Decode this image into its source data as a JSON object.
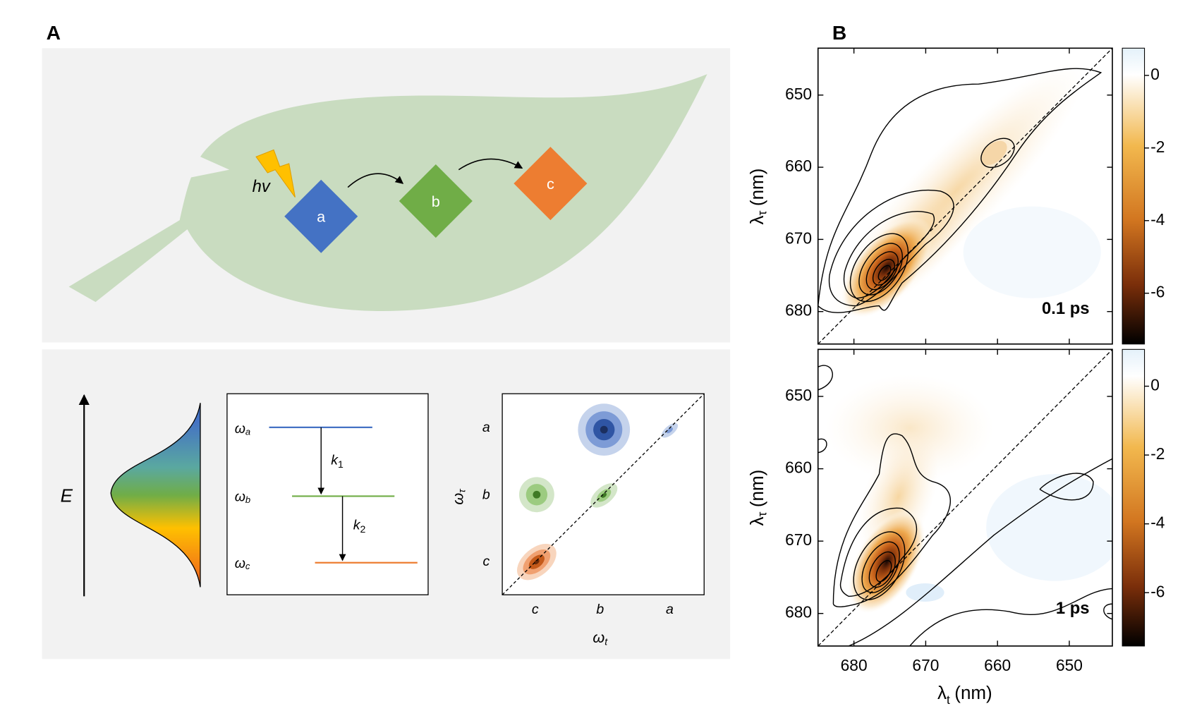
{
  "panel_a": {
    "label": "A",
    "photon": "hv",
    "states": [
      "a",
      "b",
      "c"
    ],
    "energy_axis": "E",
    "levels": [
      {
        "symbol": "ω",
        "sub": "a"
      },
      {
        "symbol": "ω",
        "sub": "b"
      },
      {
        "symbol": "ω",
        "sub": "c"
      }
    ],
    "rates": [
      {
        "symbol": "k",
        "sub": "1"
      },
      {
        "symbol": "k",
        "sub": "2"
      }
    ],
    "map": {
      "y_ticks": [
        "a",
        "b",
        "c"
      ],
      "x_ticks": [
        "c",
        "b",
        "a"
      ],
      "y_label": {
        "symbol": "ω",
        "sub": "τ"
      },
      "x_label": {
        "symbol": "ω",
        "sub": "t"
      }
    }
  },
  "panel_b": {
    "label": "B",
    "xlim": [
      685,
      644
    ],
    "xticks": [
      680,
      670,
      660,
      650
    ],
    "ylim": [
      643.5,
      684.5
    ],
    "yticks": [
      650,
      660,
      670,
      680
    ],
    "y_label": {
      "symbol": "λ",
      "sub": "τ",
      "unit": "(nm)"
    },
    "x_label": {
      "symbol": "λ",
      "sub": "t",
      "unit": "(nm)"
    },
    "plots": [
      {
        "time": "0.1 ps",
        "colorbar": {
          "lim": [
            0.75,
            -7.4
          ],
          "ticks": [
            0,
            -2,
            -4,
            -6
          ]
        }
      },
      {
        "time": "1 ps",
        "colorbar": {
          "lim": [
            1.07,
            -7.55
          ],
          "ticks": [
            0,
            -2,
            -4,
            -6
          ]
        }
      }
    ]
  }
}
